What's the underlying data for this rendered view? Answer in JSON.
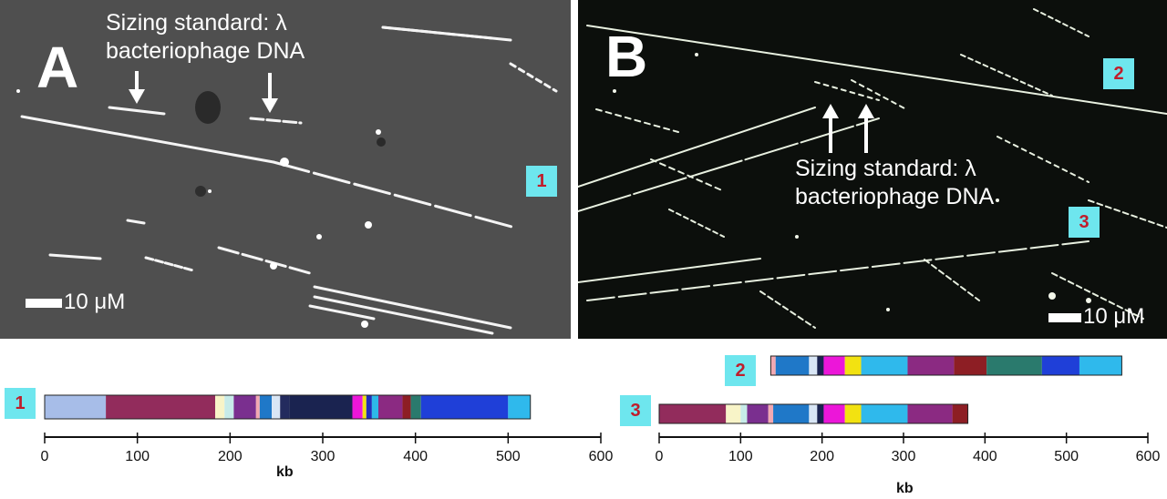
{
  "panel_a": {
    "letter": "A",
    "annotation_line1": "Sizing standard: λ",
    "annotation_line2": "bacteriophage DNA",
    "badge": "1",
    "scale_label": "10 μM"
  },
  "panel_b": {
    "letter": "B",
    "annotation_line1": "Sizing standard: λ",
    "annotation_line2": "bacteriophage DNA",
    "badge_2": "2",
    "badge_3": "3",
    "scale_label": "10 μM"
  },
  "maps": [
    {
      "label": "1",
      "start_kb": 0,
      "segments": [
        {
          "from": 0,
          "to": 66,
          "color": "#a7bde8"
        },
        {
          "from": 66,
          "to": 184,
          "color": "#922c5c"
        },
        {
          "from": 184,
          "to": 194,
          "color": "#f8f4c8"
        },
        {
          "from": 194,
          "to": 204,
          "color": "#c7ebe9"
        },
        {
          "from": 204,
          "to": 228,
          "color": "#7a2f8f"
        },
        {
          "from": 228,
          "to": 232,
          "color": "#f2a9b2"
        },
        {
          "from": 232,
          "to": 245,
          "color": "#1f78c8"
        },
        {
          "from": 245,
          "to": 254,
          "color": "#d9e6f5"
        },
        {
          "from": 254,
          "to": 264,
          "color": "#232b5e"
        },
        {
          "from": 264,
          "to": 332,
          "color": "#1a2350"
        },
        {
          "from": 332,
          "to": 343,
          "color": "#ec16d9"
        },
        {
          "from": 343,
          "to": 347,
          "color": "#f2e211"
        },
        {
          "from": 347,
          "to": 353,
          "color": "#2030b8"
        },
        {
          "from": 353,
          "to": 360,
          "color": "#2db8e8"
        },
        {
          "from": 360,
          "to": 386,
          "color": "#8b2a82"
        },
        {
          "from": 386,
          "to": 395,
          "color": "#8d1e24"
        },
        {
          "from": 395,
          "to": 406,
          "color": "#2a7a6d"
        },
        {
          "from": 406,
          "to": 500,
          "color": "#1f3fd8"
        },
        {
          "from": 500,
          "to": 524,
          "color": "#2fb9ec"
        }
      ]
    },
    {
      "label": "2",
      "start_kb": 137,
      "segments": [
        {
          "from": 137,
          "to": 143,
          "color": "#f2a9b2"
        },
        {
          "from": 143,
          "to": 184,
          "color": "#1f78c8"
        },
        {
          "from": 184,
          "to": 194,
          "color": "#d9e6f5"
        },
        {
          "from": 194,
          "to": 202,
          "color": "#1a2350"
        },
        {
          "from": 202,
          "to": 228,
          "color": "#ec16d9"
        },
        {
          "from": 228,
          "to": 248,
          "color": "#f2e211"
        },
        {
          "from": 248,
          "to": 305,
          "color": "#2fb9ec"
        },
        {
          "from": 305,
          "to": 362,
          "color": "#8b2a82"
        },
        {
          "from": 362,
          "to": 402,
          "color": "#8d1e24"
        },
        {
          "from": 402,
          "to": 470,
          "color": "#2a7a6d"
        },
        {
          "from": 470,
          "to": 516,
          "color": "#1f3fd8"
        },
        {
          "from": 516,
          "to": 568,
          "color": "#2fb9ec"
        }
      ]
    },
    {
      "label": "3",
      "start_kb": 0,
      "segments": [
        {
          "from": 0,
          "to": 82,
          "color": "#922c5c"
        },
        {
          "from": 82,
          "to": 100,
          "color": "#f8f4c8"
        },
        {
          "from": 100,
          "to": 108,
          "color": "#c7ebe9"
        },
        {
          "from": 108,
          "to": 134,
          "color": "#7a2f8f"
        },
        {
          "from": 134,
          "to": 140,
          "color": "#f2a9b2"
        },
        {
          "from": 140,
          "to": 184,
          "color": "#1f78c8"
        },
        {
          "from": 184,
          "to": 194,
          "color": "#d9e6f5"
        },
        {
          "from": 194,
          "to": 202,
          "color": "#1a2350"
        },
        {
          "from": 202,
          "to": 228,
          "color": "#ec16d9"
        },
        {
          "from": 228,
          "to": 248,
          "color": "#f2e211"
        },
        {
          "from": 248,
          "to": 305,
          "color": "#2fb9ec"
        },
        {
          "from": 305,
          "to": 360,
          "color": "#8b2a82"
        },
        {
          "from": 360,
          "to": 379,
          "color": "#8d1e24"
        }
      ]
    }
  ],
  "axis_left": {
    "ticks": [
      0,
      100,
      200,
      300,
      400,
      500,
      600
    ],
    "label": "kb",
    "max": 600
  },
  "axis_right": {
    "ticks": [
      0,
      100,
      200,
      300,
      400,
      500,
      600
    ],
    "label": "kb",
    "max": 600
  }
}
